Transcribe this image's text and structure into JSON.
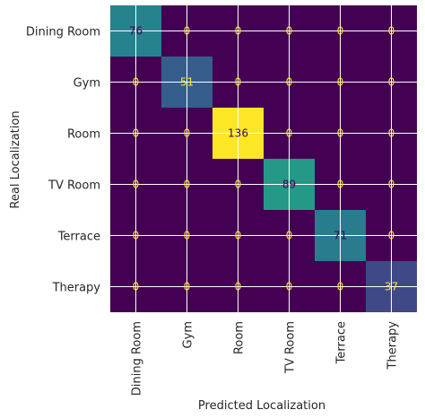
{
  "chart_data": {
    "type": "heatmap",
    "title": "",
    "xlabel": "Predicted Localization",
    "ylabel": "Real Localization",
    "x_categories": [
      "Dining Room",
      "Gym",
      "Room",
      "TV Room",
      "Terrace",
      "Therapy"
    ],
    "y_categories": [
      "Dining Room",
      "Gym",
      "Room",
      "TV Room",
      "Terrace",
      "Therapy"
    ],
    "values": [
      [
        76,
        0,
        0,
        0,
        0,
        0
      ],
      [
        0,
        51,
        0,
        0,
        0,
        0
      ],
      [
        0,
        0,
        136,
        0,
        0,
        0
      ],
      [
        0,
        0,
        0,
        89,
        0,
        0
      ],
      [
        0,
        0,
        0,
        0,
        71,
        0
      ],
      [
        0,
        0,
        0,
        0,
        0,
        37
      ]
    ],
    "colormap": "viridis",
    "value_range": [
      0,
      136
    ],
    "grid": true,
    "colors": {
      "low_text": "#fde725",
      "high_text": "#440154"
    }
  }
}
